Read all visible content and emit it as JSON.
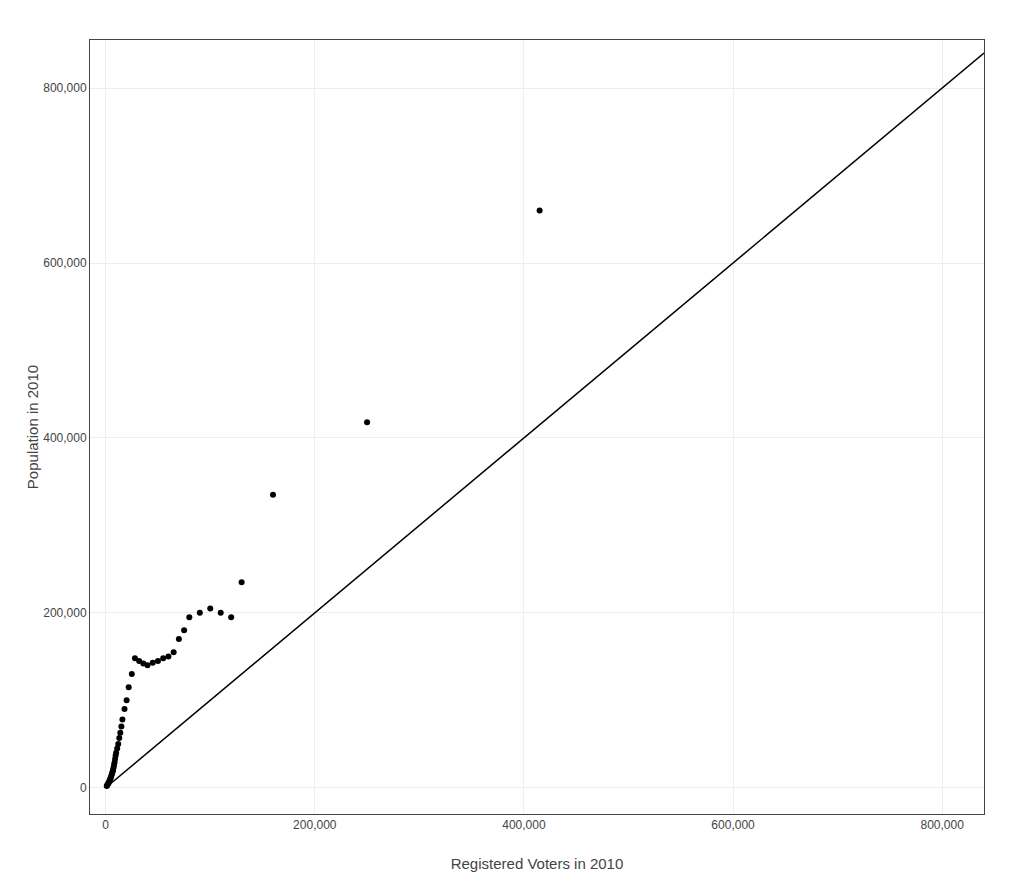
{
  "chart_data": {
    "type": "scatter",
    "xlabel": "Registered Voters in 2010",
    "ylabel": "Population in 2010",
    "xlim": [
      -15000,
      840000
    ],
    "ylim": [
      -30000,
      855000
    ],
    "xticks": [
      0,
      {
        "value": 200000,
        "label": "200,000"
      },
      {
        "value": 400000,
        "label": "400,000"
      },
      {
        "value": 600000,
        "label": "600,000"
      },
      {
        "value": 800000,
        "label": "800,000"
      }
    ],
    "yticks": [
      0,
      {
        "value": 200000,
        "label": "200,000"
      },
      {
        "value": 400000,
        "label": "400,000"
      },
      {
        "value": 600000,
        "label": "600,000"
      },
      {
        "value": 800000,
        "label": "800,000"
      }
    ],
    "grid": true,
    "series": [
      {
        "type": "line",
        "color": "#000000",
        "x": [
          0,
          840000
        ],
        "values": [
          0,
          840000
        ]
      },
      {
        "type": "scatter",
        "color": "#000000",
        "x": [
          1000,
          1500,
          2000,
          2500,
          3000,
          3500,
          4000,
          4500,
          5000,
          5500,
          6000,
          6500,
          7000,
          7500,
          8000,
          8500,
          9000,
          9500,
          10000,
          11000,
          12000,
          13000,
          14000,
          15000,
          16000,
          18000,
          20000,
          22000,
          25000,
          28000,
          32000,
          36000,
          40000,
          45000,
          50000,
          55000,
          60000,
          65000,
          70000,
          75000,
          80000,
          90000,
          100000,
          110000,
          120000,
          130000,
          160000,
          250000,
          415000
        ],
        "values": [
          2000,
          3000,
          4000,
          5000,
          6000,
          7500,
          9000,
          10500,
          12000,
          14000,
          16000,
          18000,
          20000,
          23000,
          26000,
          29000,
          33000,
          37000,
          40000,
          45000,
          50000,
          57000,
          63000,
          70000,
          78000,
          90000,
          100000,
          115000,
          130000,
          148000,
          145000,
          142000,
          140000,
          143000,
          145000,
          148000,
          150000,
          155000,
          170000,
          180000,
          195000,
          200000,
          205000,
          200000,
          195000,
          235000,
          335000,
          418000,
          660000
        ]
      }
    ]
  }
}
